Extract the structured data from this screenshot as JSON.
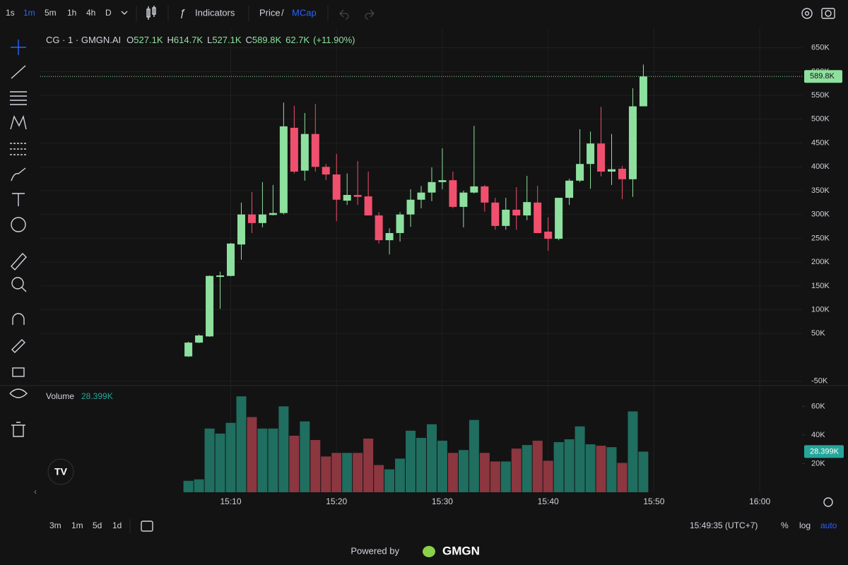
{
  "ui": {
    "intervals": [
      "1s",
      "1m",
      "5m",
      "1h",
      "4h",
      "D"
    ],
    "indicators": "Indicators",
    "price": "Price",
    "slash": "/",
    "mcap": "MCap",
    "ranges": [
      "3m",
      "1m",
      "5d",
      "1d"
    ],
    "clock": "15:49:35 (UTC+7)",
    "percent": "%",
    "log": "log",
    "auto": "auto",
    "powered_by": "Powered by",
    "brand": "GMGN"
  },
  "header": {
    "symbol": "CG · 1 · GMGN.AI",
    "items": [
      {
        "label": "O",
        "value": "527.1K"
      },
      {
        "label": "H",
        "value": "614.7K"
      },
      {
        "label": "L",
        "value": "527.1K"
      },
      {
        "label": "C",
        "value": "589.8K"
      }
    ],
    "change": "62.7K",
    "change_pct": "(+11.90%)"
  },
  "chart_data": {
    "type": "candlestick",
    "x": [
      "15:06",
      "15:07",
      "15:08",
      "15:09",
      "15:10",
      "15:11",
      "15:12",
      "15:13",
      "15:14",
      "15:15",
      "15:16",
      "15:17",
      "15:18",
      "15:19",
      "15:20",
      "15:21",
      "15:22",
      "15:23",
      "15:24",
      "15:25",
      "15:26",
      "15:27",
      "15:28",
      "15:29",
      "15:30",
      "15:31",
      "15:32",
      "15:33",
      "15:34",
      "15:35",
      "15:36",
      "15:37",
      "15:38",
      "15:39",
      "15:40",
      "15:41",
      "15:42",
      "15:43",
      "15:44",
      "15:45",
      "15:46",
      "15:47",
      "15:48",
      "15:49"
    ],
    "open": [
      2000,
      31000,
      44000,
      169000,
      171000,
      237000,
      300000,
      282000,
      299000,
      303000,
      482000,
      392000,
      469000,
      400000,
      384000,
      329000,
      341000,
      338000,
      298000,
      246000,
      261000,
      300000,
      331000,
      346000,
      368000,
      372000,
      316000,
      346000,
      359000,
      325000,
      276000,
      310000,
      298000,
      325000,
      264000,
      249000,
      335000,
      371000,
      406000,
      449000,
      390000,
      396000,
      374000,
      527100
    ],
    "high": [
      33000,
      48000,
      172000,
      180000,
      240000,
      325000,
      347000,
      368000,
      362000,
      535000,
      528000,
      513000,
      532000,
      406000,
      427000,
      386000,
      412000,
      390000,
      305000,
      271000,
      305000,
      353000,
      360000,
      399000,
      439000,
      390000,
      350000,
      486000,
      362000,
      335000,
      335000,
      357000,
      381000,
      360000,
      294000,
      335000,
      375000,
      479000,
      474000,
      526000,
      469000,
      402000,
      565000,
      614700
    ],
    "low": [
      1000,
      30000,
      43000,
      102000,
      170000,
      205000,
      261000,
      273000,
      298000,
      300000,
      386000,
      371000,
      390000,
      372000,
      286000,
      320000,
      320000,
      298000,
      239000,
      216000,
      243000,
      274000,
      313000,
      328000,
      353000,
      313000,
      273000,
      344000,
      306000,
      268000,
      268000,
      268000,
      288000,
      261000,
      224000,
      246000,
      320000,
      368000,
      354000,
      380000,
      362000,
      332000,
      337000,
      527100
    ],
    "close": [
      31000,
      46000,
      171000,
      172000,
      239000,
      300000,
      282000,
      300000,
      303000,
      485000,
      390000,
      469000,
      400000,
      384000,
      331000,
      341000,
      337000,
      298000,
      246000,
      261000,
      300000,
      331000,
      346000,
      368000,
      372000,
      316000,
      346000,
      359000,
      325000,
      276000,
      310000,
      298000,
      326000,
      261000,
      249000,
      335000,
      371000,
      406000,
      449000,
      390000,
      395000,
      374000,
      527000,
      589800
    ],
    "last_price_label": "589.8K",
    "up_color": "#8ee09f",
    "down_color": "#f0506e",
    "xlim": [
      "14:52",
      "16:04"
    ],
    "xticks": [
      "15:10",
      "15:20",
      "15:30",
      "15:40",
      "15:50",
      "16:00"
    ],
    "ylim": [
      -57800,
      688000
    ],
    "yticks": [
      {
        "value": -50000,
        "label": "-50K"
      },
      {
        "value": 50000,
        "label": "50K"
      },
      {
        "value": 100000,
        "label": "100K"
      },
      {
        "value": 150000,
        "label": "150K"
      },
      {
        "value": 200000,
        "label": "200K"
      },
      {
        "value": 250000,
        "label": "250K"
      },
      {
        "value": 300000,
        "label": "300K"
      },
      {
        "value": 350000,
        "label": "350K"
      },
      {
        "value": 400000,
        "label": "400K"
      },
      {
        "value": 450000,
        "label": "450K"
      },
      {
        "value": 500000,
        "label": "500K"
      },
      {
        "value": 550000,
        "label": "550K"
      },
      {
        "value": 600000,
        "label": "600K"
      },
      {
        "value": 650000,
        "label": "650K"
      }
    ],
    "grid": true,
    "volume": {
      "name": "Volume",
      "values": [
        8000,
        9000,
        44500,
        41000,
        48500,
        67000,
        52500,
        44500,
        44500,
        60000,
        39500,
        49500,
        36500,
        25000,
        27500,
        27500,
        27500,
        37500,
        19000,
        16000,
        23500,
        43000,
        38000,
        47500,
        36000,
        27500,
        29500,
        50500,
        27500,
        21500,
        21500,
        30500,
        33000,
        36000,
        22000,
        35000,
        37000,
        46000,
        33500,
        32500,
        31500,
        20500,
        56500,
        28399
      ],
      "last_label": "28.399K",
      "up_color": "#1f6e5f",
      "down_color": "#8c3640",
      "ylim": [
        0,
        74000
      ],
      "yticks": [
        {
          "value": 20000,
          "label": "20K"
        },
        {
          "value": 40000,
          "label": "40K"
        },
        {
          "value": 60000,
          "label": "60K"
        }
      ]
    }
  }
}
